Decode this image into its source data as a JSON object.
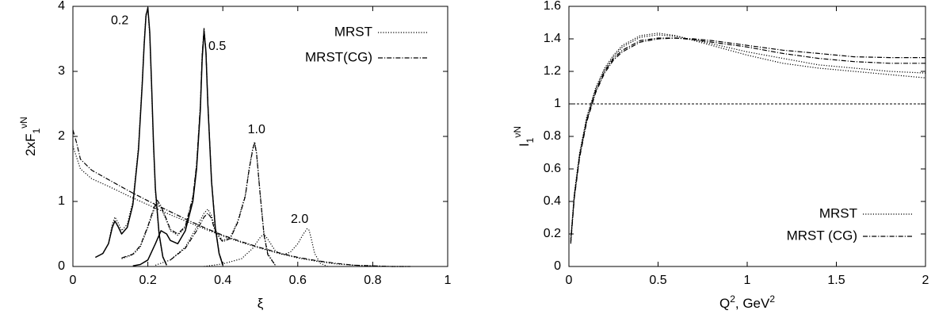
{
  "chart_data": [
    {
      "type": "line",
      "xlabel": "ξ",
      "ylabel": "2xF",
      "ylabel_sub": "1",
      "ylabel_sup": "νN",
      "xlim": [
        0,
        1
      ],
      "ylim": [
        0,
        4
      ],
      "xticks": [
        "0",
        "0.2",
        "0.4",
        "0.6",
        "0.8",
        "1"
      ],
      "xtick_values": [
        0,
        0.2,
        0.4,
        0.6,
        0.8,
        1
      ],
      "yticks": [
        "0",
        "1",
        "2",
        "3",
        "4"
      ],
      "ytick_values": [
        0,
        1,
        2,
        3,
        4
      ],
      "legend_position": "top-right",
      "legend": [
        {
          "label": "MRST",
          "style": "dotted"
        },
        {
          "label": "MRST(CG)",
          "style": "dashdot"
        }
      ],
      "annotations": [
        {
          "text": "0.2",
          "x": 0.125,
          "y": 3.78
        },
        {
          "text": "0.5",
          "x": 0.385,
          "y": 3.38
        },
        {
          "text": "1.0",
          "x": 0.49,
          "y": 2.1
        },
        {
          "text": "2.0",
          "x": 0.605,
          "y": 0.72
        }
      ],
      "series": [
        {
          "style": "solid",
          "x": [
            0.06,
            0.08,
            0.095,
            0.105,
            0.112,
            0.12,
            0.13,
            0.145,
            0.16,
            0.175,
            0.185,
            0.19,
            0.195,
            0.2,
            0.205,
            0.21,
            0.215,
            0.22,
            0.23,
            0.24,
            0.25
          ],
          "y": [
            0.14,
            0.2,
            0.35,
            0.6,
            0.7,
            0.62,
            0.5,
            0.6,
            0.95,
            1.8,
            2.8,
            3.4,
            3.85,
            3.98,
            3.6,
            2.8,
            1.9,
            1.2,
            0.5,
            0.15,
            0.02
          ]
        },
        {
          "style": "dotted",
          "x": [
            0.06,
            0.08,
            0.095,
            0.105,
            0.112,
            0.12,
            0.13,
            0.145,
            0.16,
            0.175,
            0.185,
            0.19,
            0.195,
            0.2,
            0.205,
            0.21,
            0.215,
            0.22,
            0.23,
            0.24,
            0.25
          ],
          "y": [
            0.14,
            0.2,
            0.35,
            0.65,
            0.76,
            0.68,
            0.55,
            0.65,
            1.0,
            1.85,
            2.85,
            3.45,
            3.88,
            3.95,
            3.55,
            2.75,
            1.85,
            1.15,
            0.48,
            0.14,
            0.02
          ]
        },
        {
          "style": "solid",
          "x": [
            0.16,
            0.18,
            0.2,
            0.22,
            0.235,
            0.25,
            0.26,
            0.28,
            0.3,
            0.32,
            0.33,
            0.34,
            0.345,
            0.35,
            0.355,
            0.36,
            0.37,
            0.38,
            0.39,
            0.4
          ],
          "y": [
            0.01,
            0.03,
            0.1,
            0.35,
            0.55,
            0.5,
            0.4,
            0.35,
            0.55,
            1.0,
            1.5,
            2.4,
            3.2,
            3.62,
            3.3,
            2.5,
            1.3,
            0.6,
            0.2,
            0.02
          ]
        },
        {
          "style": "dotted",
          "x": [
            0.13,
            0.16,
            0.18,
            0.2,
            0.215,
            0.225,
            0.235,
            0.25,
            0.26,
            0.28,
            0.3,
            0.32,
            0.33,
            0.34,
            0.345,
            0.35,
            0.355,
            0.36,
            0.37,
            0.38,
            0.39,
            0.4
          ],
          "y": [
            0.12,
            0.18,
            0.3,
            0.6,
            0.85,
            0.98,
            0.9,
            0.7,
            0.55,
            0.48,
            0.6,
            1.05,
            1.55,
            2.45,
            3.25,
            3.65,
            3.3,
            2.5,
            1.3,
            0.6,
            0.2,
            0.02
          ]
        },
        {
          "style": "dashdot",
          "x": [
            0.13,
            0.16,
            0.18,
            0.2,
            0.215,
            0.225,
            0.235,
            0.25,
            0.26,
            0.28,
            0.3,
            0.32,
            0.33,
            0.34,
            0.345,
            0.35,
            0.355,
            0.36,
            0.37,
            0.38,
            0.39,
            0.4
          ],
          "y": [
            0.13,
            0.19,
            0.32,
            0.62,
            0.88,
            1.02,
            0.93,
            0.72,
            0.57,
            0.5,
            0.62,
            1.07,
            1.57,
            2.47,
            3.27,
            3.66,
            3.32,
            2.52,
            1.32,
            0.62,
            0.21,
            0.03
          ]
        },
        {
          "style": "dotted",
          "x": [
            0.22,
            0.26,
            0.3,
            0.33,
            0.35,
            0.36,
            0.37,
            0.38,
            0.4,
            0.42,
            0.44,
            0.46,
            0.47,
            0.48,
            0.485,
            0.49,
            0.5,
            0.51,
            0.52,
            0.54
          ],
          "y": [
            0.02,
            0.1,
            0.3,
            0.6,
            0.82,
            0.88,
            0.78,
            0.55,
            0.4,
            0.45,
            0.7,
            1.1,
            1.5,
            1.82,
            1.92,
            1.75,
            1.1,
            0.5,
            0.2,
            0.02
          ]
        },
        {
          "style": "dashdot",
          "x": [
            0.26,
            0.3,
            0.33,
            0.35,
            0.36,
            0.37,
            0.38,
            0.4,
            0.42,
            0.44,
            0.46,
            0.47,
            0.48,
            0.485,
            0.49,
            0.5,
            0.51,
            0.52,
            0.54
          ],
          "y": [
            0.1,
            0.28,
            0.55,
            0.76,
            0.82,
            0.74,
            0.52,
            0.38,
            0.43,
            0.68,
            1.08,
            1.48,
            1.8,
            1.9,
            1.73,
            1.08,
            0.48,
            0.18,
            0.02
          ]
        },
        {
          "style": "dotted",
          "x": [
            0.35,
            0.4,
            0.45,
            0.48,
            0.5,
            0.51,
            0.52,
            0.54,
            0.56,
            0.58,
            0.6,
            0.615,
            0.625,
            0.63,
            0.635,
            0.645,
            0.66,
            0.68
          ],
          "y": [
            0.0,
            0.04,
            0.12,
            0.28,
            0.45,
            0.5,
            0.42,
            0.24,
            0.18,
            0.22,
            0.35,
            0.5,
            0.58,
            0.56,
            0.45,
            0.2,
            0.05,
            0.0
          ]
        },
        {
          "style": "dotted",
          "x": [
            0.0,
            0.02,
            0.05,
            0.1,
            0.15,
            0.2,
            0.25,
            0.3,
            0.35,
            0.4,
            0.45,
            0.5,
            0.55,
            0.6,
            0.65,
            0.7,
            0.75,
            0.8,
            0.85,
            0.9
          ],
          "y": [
            1.85,
            1.5,
            1.35,
            1.22,
            1.08,
            0.95,
            0.82,
            0.7,
            0.58,
            0.47,
            0.37,
            0.28,
            0.2,
            0.13,
            0.08,
            0.04,
            0.02,
            0.01,
            0.0,
            0.0
          ]
        },
        {
          "style": "dashdot",
          "x": [
            0.0,
            0.01,
            0.02,
            0.05,
            0.1,
            0.15,
            0.2,
            0.25,
            0.3,
            0.35,
            0.4,
            0.45,
            0.5,
            0.55,
            0.6,
            0.65,
            0.7,
            0.75,
            0.8,
            0.85,
            0.9
          ],
          "y": [
            2.1,
            1.9,
            1.65,
            1.48,
            1.32,
            1.16,
            1.01,
            0.87,
            0.73,
            0.6,
            0.48,
            0.38,
            0.29,
            0.21,
            0.14,
            0.09,
            0.05,
            0.02,
            0.01,
            0.0,
            0.0
          ]
        }
      ]
    },
    {
      "type": "line",
      "xlabel": "Q",
      "xlabel_sup": "2",
      "xlabel_rest": ", GeV",
      "xlabel_rest_sup": "2",
      "ylabel": "I",
      "ylabel_sub": "1",
      "ylabel_sup": "νN",
      "xlim": [
        0,
        2
      ],
      "ylim": [
        0,
        1.6
      ],
      "xticks": [
        "0",
        "0.5",
        "1",
        "1.5",
        "2"
      ],
      "xtick_values": [
        0,
        0.5,
        1,
        1.5,
        2
      ],
      "yticks": [
        "0",
        "0.2",
        "0.4",
        "0.6",
        "0.8",
        "1",
        "1.2",
        "1.4",
        "1.6"
      ],
      "ytick_values": [
        0,
        0.2,
        0.4,
        0.6,
        0.8,
        1.0,
        1.2,
        1.4,
        1.6
      ],
      "legend_position": "bottom-right",
      "legend": [
        {
          "label": "MRST",
          "style": "dotted"
        },
        {
          "label": "MRST (CG)",
          "style": "dashdot"
        }
      ],
      "reference_line": {
        "y": 1.0,
        "style": "dashed"
      },
      "series": [
        {
          "style": "dotted",
          "x": [
            0.01,
            0.03,
            0.06,
            0.1,
            0.15,
            0.2,
            0.25,
            0.3,
            0.4,
            0.5,
            0.6,
            0.7,
            0.8,
            1.0,
            1.2,
            1.4,
            1.6,
            1.8,
            2.0
          ],
          "y": [
            0.17,
            0.45,
            0.7,
            0.92,
            1.1,
            1.22,
            1.3,
            1.36,
            1.42,
            1.435,
            1.42,
            1.39,
            1.36,
            1.3,
            1.25,
            1.22,
            1.2,
            1.18,
            1.16
          ]
        },
        {
          "style": "dotted",
          "x": [
            0.01,
            0.03,
            0.06,
            0.1,
            0.15,
            0.2,
            0.25,
            0.3,
            0.4,
            0.5,
            0.6,
            0.7,
            0.8,
            1.0,
            1.2,
            1.4,
            1.6,
            1.8,
            2.0
          ],
          "y": [
            0.16,
            0.44,
            0.69,
            0.91,
            1.09,
            1.21,
            1.29,
            1.35,
            1.41,
            1.425,
            1.415,
            1.395,
            1.37,
            1.32,
            1.28,
            1.24,
            1.22,
            1.2,
            1.19
          ]
        },
        {
          "style": "dashdot",
          "x": [
            0.01,
            0.03,
            0.06,
            0.1,
            0.15,
            0.2,
            0.25,
            0.3,
            0.4,
            0.5,
            0.6,
            0.7,
            0.8,
            1.0,
            1.2,
            1.4,
            1.6,
            1.8,
            2.0
          ],
          "y": [
            0.15,
            0.43,
            0.68,
            0.9,
            1.08,
            1.2,
            1.28,
            1.33,
            1.39,
            1.405,
            1.405,
            1.395,
            1.38,
            1.35,
            1.31,
            1.28,
            1.26,
            1.25,
            1.25
          ]
        },
        {
          "style": "dashdot",
          "x": [
            0.01,
            0.03,
            0.06,
            0.1,
            0.15,
            0.2,
            0.25,
            0.3,
            0.4,
            0.5,
            0.6,
            0.7,
            0.8,
            1.0,
            1.2,
            1.4,
            1.6,
            1.8,
            2.0
          ],
          "y": [
            0.14,
            0.42,
            0.67,
            0.89,
            1.07,
            1.19,
            1.27,
            1.32,
            1.38,
            1.4,
            1.405,
            1.4,
            1.39,
            1.36,
            1.33,
            1.31,
            1.29,
            1.285,
            1.285
          ]
        }
      ]
    }
  ]
}
